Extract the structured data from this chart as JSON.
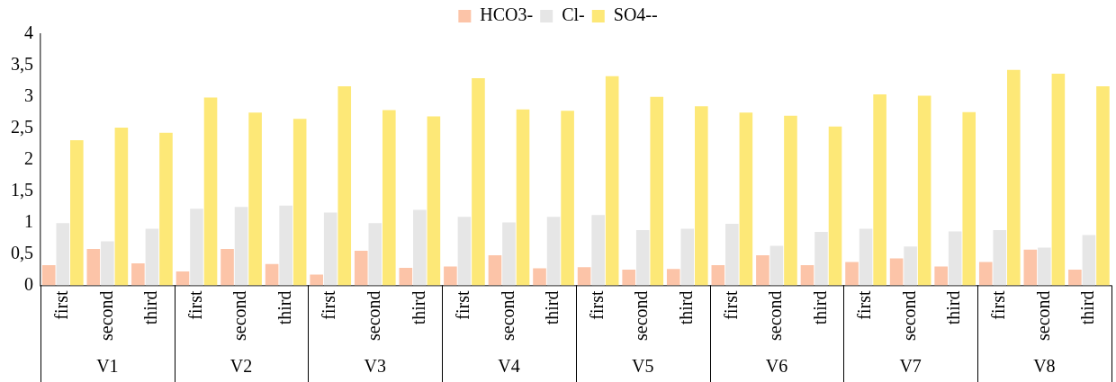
{
  "chart_data": {
    "type": "bar",
    "categories": [
      "first",
      "second",
      "third",
      "first",
      "second",
      "third",
      "first",
      "second",
      "third",
      "first",
      "second",
      "third",
      "first",
      "second",
      "third",
      "first",
      "second",
      "third",
      "first",
      "second",
      "third",
      "first",
      "second",
      "third"
    ],
    "annotations": [
      "V1",
      "V2",
      "V3",
      "V4",
      "V5",
      "V6",
      "V7",
      "V8"
    ],
    "series": [
      {
        "name": "HCO3-",
        "color": "#fcc4a8",
        "values": [
          0.32,
          0.58,
          0.35,
          0.22,
          0.58,
          0.34,
          0.17,
          0.55,
          0.28,
          0.3,
          0.48,
          0.27,
          0.29,
          0.25,
          0.26,
          0.32,
          0.48,
          0.32,
          0.37,
          0.43,
          0.3,
          0.37,
          0.57,
          0.25
        ]
      },
      {
        "name": "Cl-",
        "color": "#e6e6e6",
        "values": [
          0.99,
          0.7,
          0.9,
          1.22,
          1.25,
          1.27,
          1.16,
          0.99,
          1.2,
          1.09,
          1.0,
          1.09,
          1.12,
          0.88,
          0.9,
          0.98,
          0.63,
          0.85,
          0.9,
          0.62,
          0.86,
          0.88,
          0.6,
          0.8
        ]
      },
      {
        "name": "SO4--",
        "color": "#fde877",
        "values": [
          2.31,
          2.51,
          2.43,
          2.99,
          2.75,
          2.65,
          3.17,
          2.79,
          2.69,
          3.3,
          2.8,
          2.78,
          3.33,
          3.0,
          2.85,
          2.75,
          2.7,
          2.53,
          3.04,
          3.02,
          2.76,
          3.43,
          3.37,
          3.17
        ]
      }
    ],
    "ylim": [
      0,
      4
    ],
    "yticks": [
      0,
      {
        "value": 0.5,
        "label": "0,5"
      },
      1,
      {
        "value": 1.5,
        "label": "1,5"
      },
      2,
      {
        "value": 2.5,
        "label": "2,5"
      },
      3,
      {
        "value": 3.5,
        "label": "3,5"
      },
      4
    ],
    "grid": false,
    "legend": "top"
  }
}
